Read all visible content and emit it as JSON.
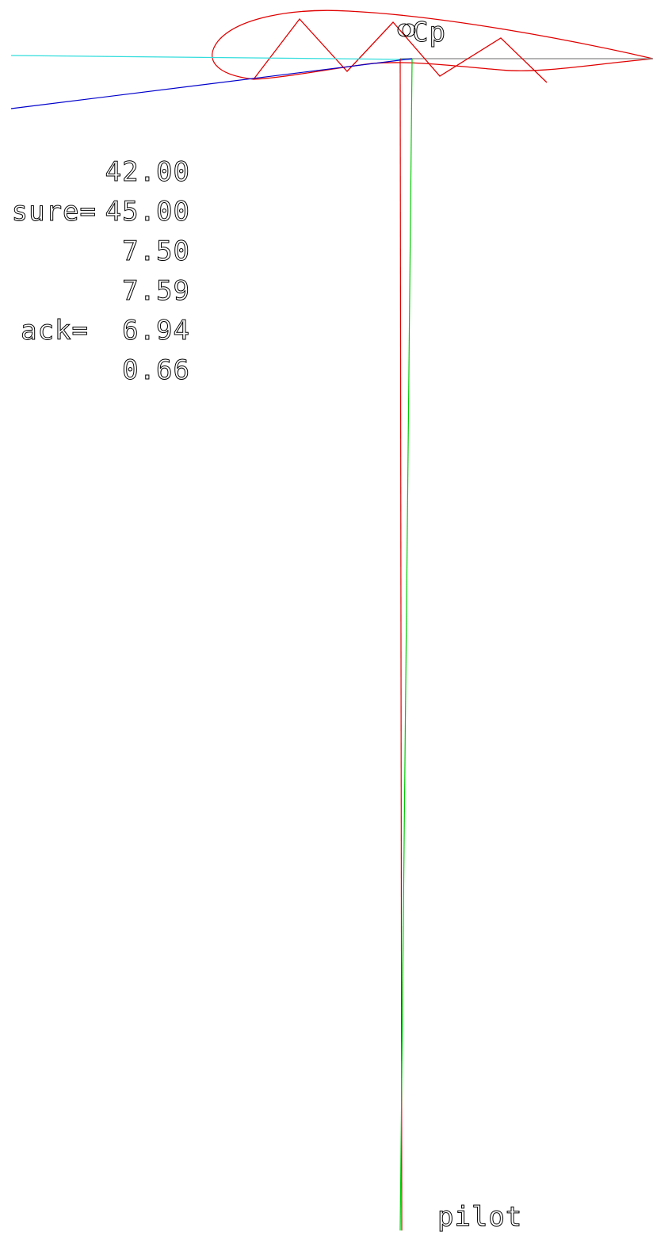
{
  "labels": {
    "cp_marker": "Cp",
    "pilot": "pilot"
  },
  "readouts": [
    {
      "label": "",
      "value": "42.00"
    },
    {
      "label": "sure=",
      "value": "45.00"
    },
    {
      "label": "",
      "value": "7.50"
    },
    {
      "label": "",
      "value": "7.59"
    },
    {
      "label": "ack=",
      "value": "6.94"
    },
    {
      "label": "",
      "value": "0.66"
    }
  ],
  "colors": {
    "airfoil": "#e00000",
    "pressure_zigzag": "#e00000",
    "chord_line": "#888888",
    "cyan_line": "#33dddd",
    "blue_line": "#0000cc",
    "red_line_vertical": "#e00000",
    "green_line_vertical": "#00cc00",
    "text": "#000000"
  }
}
